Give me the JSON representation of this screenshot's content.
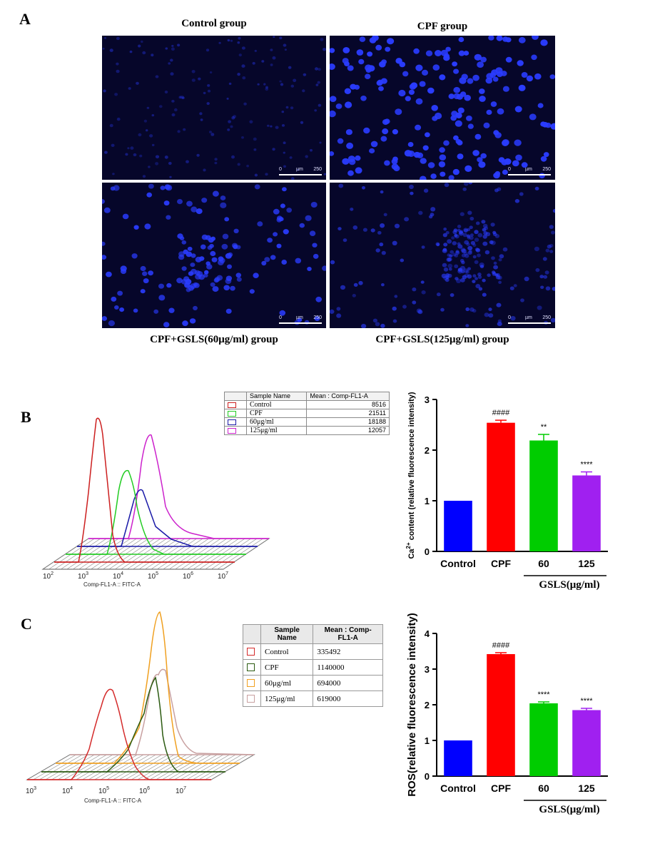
{
  "panel_a": {
    "letter": "A",
    "images": [
      {
        "caption": "Control group",
        "scale": {
          "zero": "0",
          "unit": "µm",
          "max": "250"
        }
      },
      {
        "caption": "CPF group",
        "scale": {
          "zero": "0",
          "unit": "µm",
          "max": "250"
        }
      },
      {
        "caption": "CPF+GSLS(60μg/ml) group",
        "scale": {
          "zero": "0",
          "unit": "µm",
          "max": "250"
        }
      },
      {
        "caption": "CPF+GSLS(125μg/ml) group",
        "scale": {
          "zero": "0",
          "unit": "µm",
          "max": "250"
        }
      }
    ]
  },
  "panel_b": {
    "letter": "B",
    "legend": {
      "headers": [
        "Sample Name",
        "Mean : Comp-FL1-A"
      ],
      "rows": [
        {
          "name": "Control",
          "value": "8516",
          "color": "#cc1f1f"
        },
        {
          "name": "CPF",
          "value": "21511",
          "color": "#22cc22"
        },
        {
          "name": "60μg/ml",
          "value": "18188",
          "color": "#1a1aa8"
        },
        {
          "name": "125μg/ml",
          "value": "12057",
          "color": "#cc22cc"
        }
      ]
    },
    "histogram": {
      "xlabel": "Comp-FL1-A :: FITC-A",
      "ticks": [
        {
          "base": "10",
          "exp": "2"
        },
        {
          "base": "10",
          "exp": "3"
        },
        {
          "base": "10",
          "exp": "4"
        },
        {
          "base": "10",
          "exp": "5"
        },
        {
          "base": "10",
          "exp": "6"
        },
        {
          "base": "10",
          "exp": "7"
        }
      ]
    }
  },
  "panel_c": {
    "letter": "C",
    "legend": {
      "headers": [
        "Sample Name",
        "Mean : Comp-FL1-A"
      ],
      "rows": [
        {
          "name": "Control",
          "value": "335492",
          "color": "#d42a2a"
        },
        {
          "name": "CPF",
          "value": "1140000",
          "color": "#2b5a10"
        },
        {
          "name": "60μg/ml",
          "value": "694000",
          "color": "#f0a020"
        },
        {
          "name": "125μg/ml",
          "value": "619000",
          "color": "#c8a0a0"
        }
      ]
    },
    "histogram": {
      "xlabel": "Comp-FL1-A :: FITC-A",
      "ticks": [
        {
          "base": "10",
          "exp": "3"
        },
        {
          "base": "10",
          "exp": "4"
        },
        {
          "base": "10",
          "exp": "5"
        },
        {
          "base": "10",
          "exp": "6"
        },
        {
          "base": "10",
          "exp": "7"
        }
      ]
    }
  },
  "chart_data": [
    {
      "type": "bar",
      "id": "ca-bar",
      "categories": [
        "Control",
        "CPF",
        "60",
        "125"
      ],
      "values": [
        1.0,
        2.54,
        2.19,
        1.5
      ],
      "errors": [
        0,
        0.05,
        0.12,
        0.07
      ],
      "colors": [
        "#0000ff",
        "#ff0000",
        "#00cc00",
        "#a020f0"
      ],
      "annotations": [
        "",
        "####",
        "**",
        "****"
      ],
      "ylabel_pre": "Ca",
      "ylabel_sup": "2+",
      "ylabel_post": " content (relative fluorescence intensity)",
      "ylim": [
        0,
        3
      ],
      "yticks": [
        "0",
        "1",
        "2",
        "3"
      ],
      "group_label": "GSLS(μg/ml)"
    },
    {
      "type": "bar",
      "id": "ros-bar",
      "categories": [
        "Control",
        "CPF",
        "60",
        "125"
      ],
      "values": [
        1.0,
        3.42,
        2.04,
        1.85
      ],
      "errors": [
        0,
        0.04,
        0.04,
        0.05
      ],
      "colors": [
        "#0000ff",
        "#ff0000",
        "#00cc00",
        "#a020f0"
      ],
      "annotations": [
        "",
        "####",
        "****",
        "****"
      ],
      "ylabel": "ROS(relative fluorescence intensity)",
      "ylim": [
        0,
        4
      ],
      "yticks": [
        "0",
        "1",
        "2",
        "3",
        "4"
      ],
      "group_label": "GSLS(μg/ml)"
    }
  ]
}
